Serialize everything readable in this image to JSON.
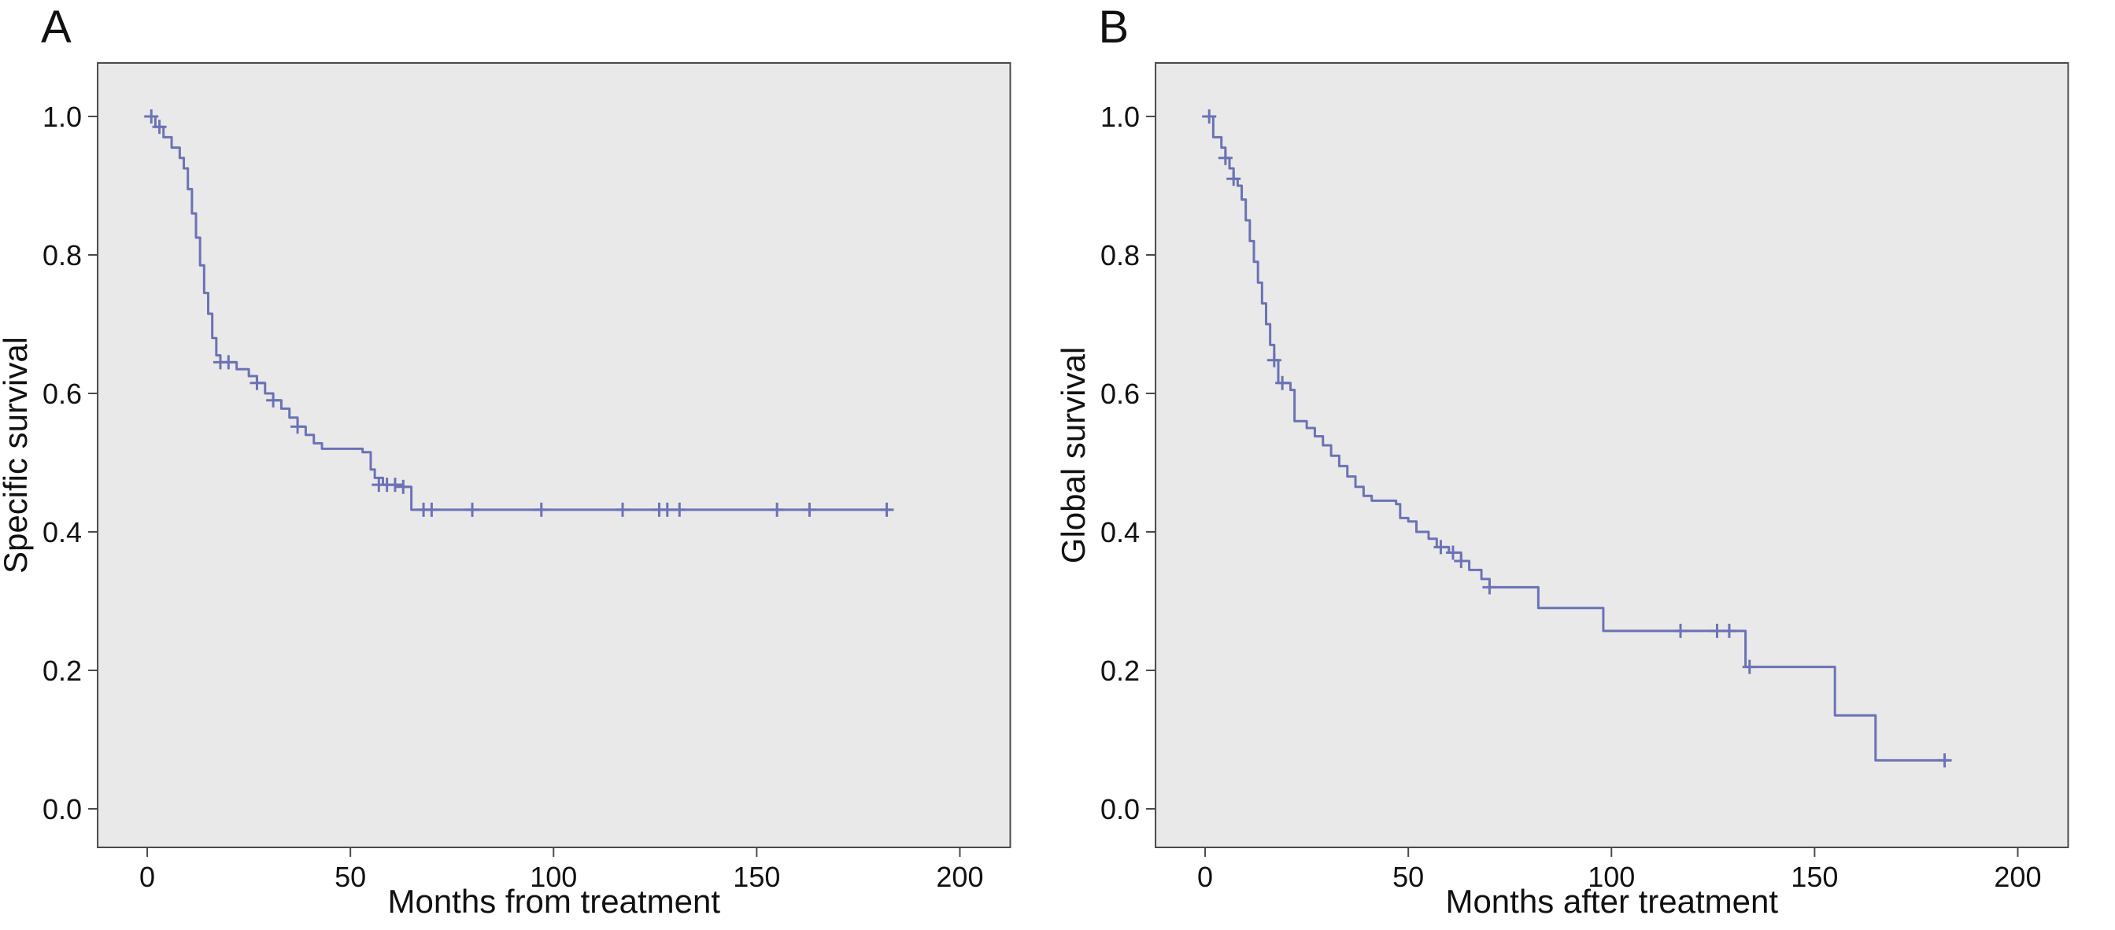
{
  "panels": [
    {
      "label": "A"
    },
    {
      "label": "B"
    }
  ],
  "style": {
    "plot_background": "#e9e9e9",
    "plot_border_color": "#4a4a4a",
    "curve_color": "#6b72b6",
    "text_color": "#111111"
  },
  "chart_data": [
    {
      "type": "line",
      "subtype": "kaplan-meier-step",
      "panel_label": "A",
      "title": "",
      "xlabel": "Months from treatment",
      "ylabel": "Specific survival",
      "xlim": [
        0,
        200
      ],
      "ylim": [
        0,
        1
      ],
      "xtick_values": [
        0,
        50,
        100,
        150,
        200
      ],
      "xtick_labels": [
        "0",
        "50",
        "100",
        "150",
        "200"
      ],
      "ytick_values": [
        0.0,
        0.2,
        0.4,
        0.6,
        0.8,
        1.0
      ],
      "ytick_labels": [
        "0.0",
        "0.2",
        "0.4",
        "0.6",
        "0.8",
        "1.0"
      ],
      "grid": false,
      "legend": null,
      "line_color": "#6b72b6",
      "plot_bg": "#e9e9e9",
      "steps": [
        [
          0,
          1.0
        ],
        [
          2,
          0.985
        ],
        [
          4,
          0.97
        ],
        [
          6,
          0.955
        ],
        [
          8,
          0.94
        ],
        [
          9,
          0.925
        ],
        [
          10,
          0.895
        ],
        [
          11,
          0.86
        ],
        [
          12,
          0.825
        ],
        [
          13,
          0.785
        ],
        [
          14,
          0.745
        ],
        [
          15,
          0.715
        ],
        [
          16,
          0.68
        ],
        [
          17,
          0.655
        ],
        [
          18,
          0.645
        ],
        [
          22,
          0.635
        ],
        [
          25,
          0.625
        ],
        [
          27,
          0.615
        ],
        [
          29,
          0.6
        ],
        [
          31,
          0.59
        ],
        [
          33,
          0.578
        ],
        [
          35,
          0.565
        ],
        [
          37,
          0.552
        ],
        [
          39,
          0.54
        ],
        [
          41,
          0.528
        ],
        [
          43,
          0.52
        ],
        [
          53,
          0.515
        ],
        [
          55,
          0.49
        ],
        [
          56,
          0.478
        ],
        [
          58,
          0.468
        ],
        [
          63,
          0.465
        ],
        [
          65,
          0.432
        ],
        [
          183,
          0.432
        ]
      ],
      "censor_marks": [
        [
          1,
          1.0
        ],
        [
          3,
          0.985
        ],
        [
          18,
          0.645
        ],
        [
          20,
          0.645
        ],
        [
          27,
          0.615
        ],
        [
          31,
          0.59
        ],
        [
          37,
          0.552
        ],
        [
          57,
          0.468
        ],
        [
          59,
          0.468
        ],
        [
          61,
          0.468
        ],
        [
          63,
          0.465
        ],
        [
          68,
          0.432
        ],
        [
          70,
          0.432
        ],
        [
          80,
          0.432
        ],
        [
          97,
          0.432
        ],
        [
          117,
          0.432
        ],
        [
          126,
          0.432
        ],
        [
          128,
          0.432
        ],
        [
          131,
          0.432
        ],
        [
          155,
          0.432
        ],
        [
          163,
          0.432
        ],
        [
          182,
          0.432
        ]
      ]
    },
    {
      "type": "line",
      "subtype": "kaplan-meier-step",
      "panel_label": "B",
      "title": "",
      "xlabel": "Months after treatment",
      "ylabel": "Global survival",
      "xlim": [
        0,
        200
      ],
      "ylim": [
        0,
        1
      ],
      "xtick_values": [
        0,
        50,
        100,
        150,
        200
      ],
      "xtick_labels": [
        "0",
        "50",
        "100",
        "150",
        "200"
      ],
      "ytick_values": [
        0.0,
        0.2,
        0.4,
        0.6,
        0.8,
        1.0
      ],
      "ytick_labels": [
        "0.0",
        "0.2",
        "0.4",
        "0.6",
        "0.8",
        "1.0"
      ],
      "grid": false,
      "legend": null,
      "line_color": "#6b72b6",
      "plot_bg": "#e9e9e9",
      "steps": [
        [
          0,
          1.0
        ],
        [
          2,
          0.97
        ],
        [
          4,
          0.955
        ],
        [
          5,
          0.94
        ],
        [
          6,
          0.925
        ],
        [
          7,
          0.91
        ],
        [
          8,
          0.9
        ],
        [
          9,
          0.88
        ],
        [
          10,
          0.85
        ],
        [
          11,
          0.82
        ],
        [
          12,
          0.79
        ],
        [
          13,
          0.76
        ],
        [
          14,
          0.73
        ],
        [
          15,
          0.7
        ],
        [
          16,
          0.67
        ],
        [
          17,
          0.648
        ],
        [
          18,
          0.615
        ],
        [
          21,
          0.605
        ],
        [
          22,
          0.56
        ],
        [
          25,
          0.55
        ],
        [
          27,
          0.538
        ],
        [
          29,
          0.525
        ],
        [
          31,
          0.51
        ],
        [
          33,
          0.495
        ],
        [
          35,
          0.48
        ],
        [
          37,
          0.465
        ],
        [
          39,
          0.452
        ],
        [
          41,
          0.445
        ],
        [
          47,
          0.44
        ],
        [
          48,
          0.42
        ],
        [
          50,
          0.415
        ],
        [
          52,
          0.4
        ],
        [
          55,
          0.39
        ],
        [
          57,
          0.378
        ],
        [
          60,
          0.37
        ],
        [
          63,
          0.358
        ],
        [
          65,
          0.345
        ],
        [
          68,
          0.332
        ],
        [
          70,
          0.32
        ],
        [
          82,
          0.29
        ],
        [
          98,
          0.257
        ],
        [
          133,
          0.205
        ],
        [
          155,
          0.135
        ],
        [
          165,
          0.07
        ],
        [
          183,
          0.07
        ]
      ],
      "censor_marks": [
        [
          1,
          1.0
        ],
        [
          5,
          0.94
        ],
        [
          7,
          0.91
        ],
        [
          17,
          0.648
        ],
        [
          19,
          0.615
        ],
        [
          58,
          0.378
        ],
        [
          61,
          0.37
        ],
        [
          63,
          0.358
        ],
        [
          70,
          0.32
        ],
        [
          117,
          0.257
        ],
        [
          126,
          0.257
        ],
        [
          129,
          0.257
        ],
        [
          134,
          0.205
        ],
        [
          182,
          0.07
        ]
      ]
    }
  ]
}
